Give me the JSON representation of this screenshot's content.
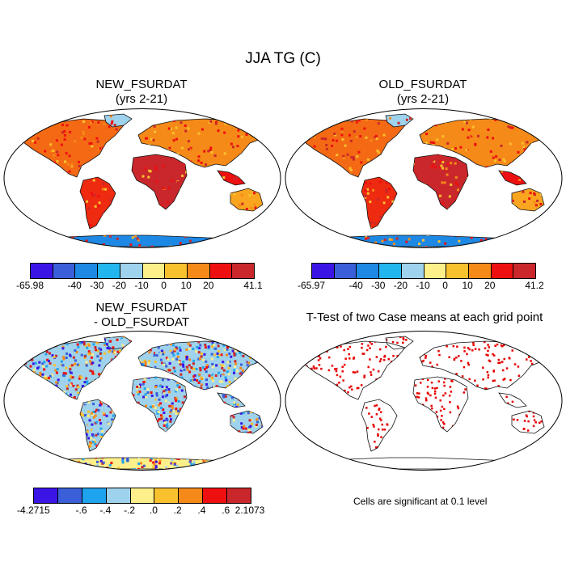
{
  "title": "JJA TG (C)",
  "panels": {
    "new": {
      "title1": "NEW_FSURDAT",
      "title2": "(yrs 2-21)"
    },
    "old": {
      "title1": "OLD_FSURDAT",
      "title2": "(yrs 2-21)"
    },
    "diff": {
      "title1": "NEW_FSURDAT",
      "title2": "- OLD_FSURDAT"
    },
    "ttest": {
      "title1": "T-Test of two Case means at each grid point"
    }
  },
  "colorbars": {
    "new": {
      "colors": [
        "#3a15e6",
        "#3a5fd8",
        "#1e88e5",
        "#23b6ee",
        "#9fd2ec",
        "#fdf08a",
        "#f9c12e",
        "#f58a18",
        "#ee1010",
        "#c9272b"
      ],
      "labels": [
        "-65.98",
        "-40",
        "-30",
        "-20",
        "-10",
        "0",
        "10",
        "20",
        "41.1"
      ]
    },
    "old": {
      "colors": [
        "#3a15e6",
        "#3a5fd8",
        "#1e88e5",
        "#23b6ee",
        "#9fd2ec",
        "#fdf08a",
        "#f9c12e",
        "#f58a18",
        "#ee1010",
        "#c9272b"
      ],
      "labels": [
        "-65.97",
        "-40",
        "-30",
        "-20",
        "-10",
        "0",
        "10",
        "20",
        "41.2"
      ]
    },
    "diff": {
      "colors": [
        "#3a15e6",
        "#3a5fd8",
        "#1ea3ee",
        "#9fd2ec",
        "#fdf08a",
        "#f9c12e",
        "#f58a18",
        "#ee1010",
        "#c9272b"
      ],
      "labels": [
        "-4.2715",
        "-.6",
        "-.4",
        "-.2",
        ".0",
        ".2",
        ".4",
        ".6",
        "2.1073"
      ]
    }
  },
  "ttest_note": "Cells are significant at 0.1 level"
}
